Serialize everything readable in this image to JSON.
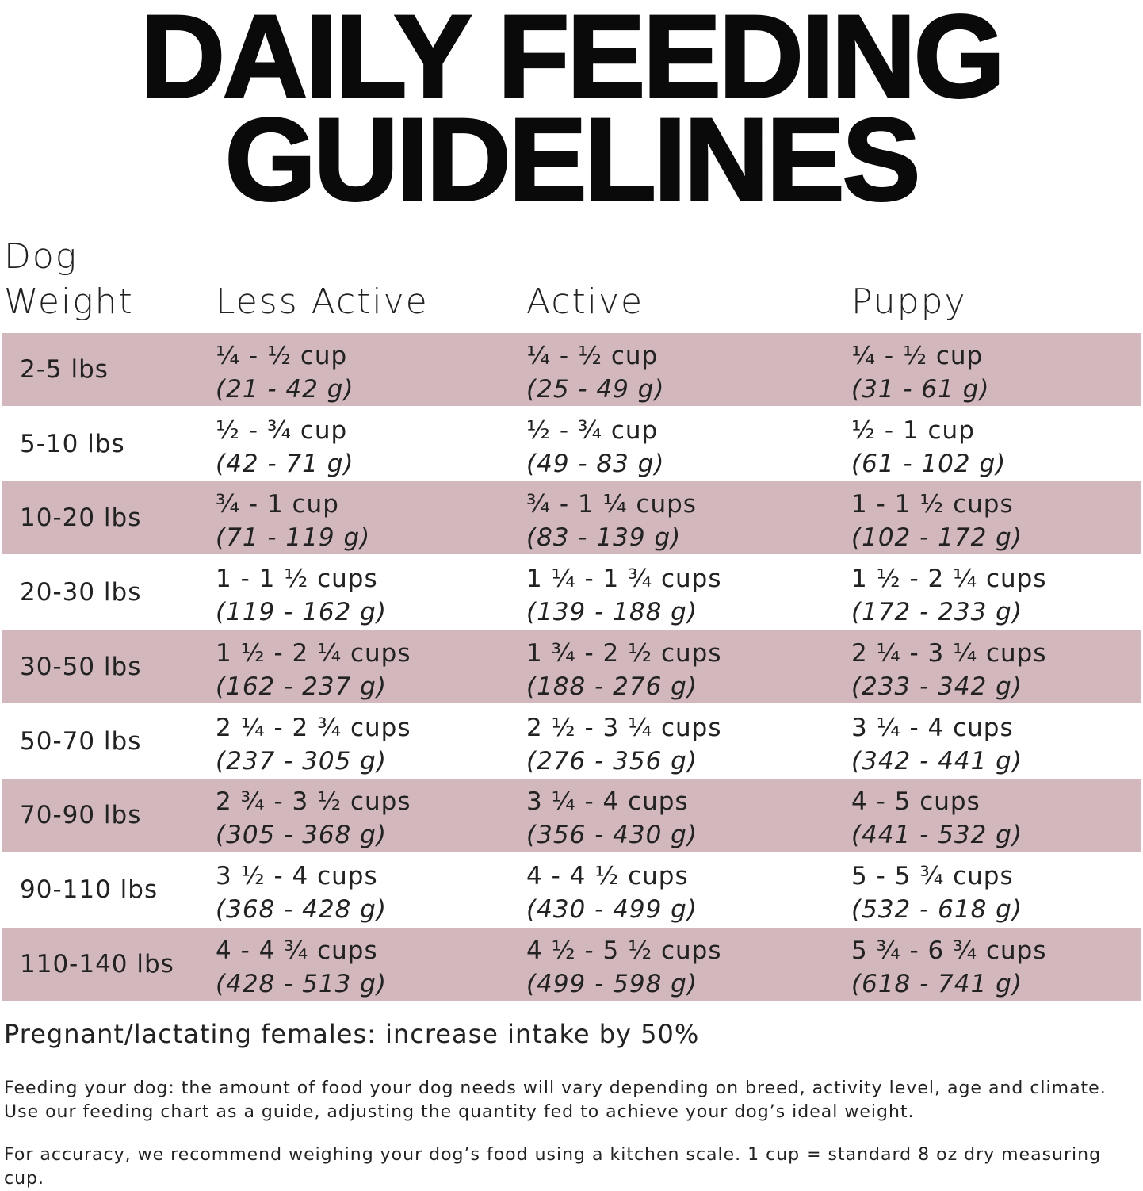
{
  "title": {
    "line1": "DAILY FEEDING",
    "line2": "GUIDELINES"
  },
  "header": {
    "weight_line1": "Dog",
    "weight_line2": "Weight",
    "less_active": "Less Active",
    "active": "Active",
    "puppy": "Puppy"
  },
  "rows": [
    {
      "weight": "2-5 lbs",
      "less_active": {
        "cups": "¼ - ½ cup",
        "grams": "(21 - 42 g)"
      },
      "active": {
        "cups": "¼ - ½ cup",
        "grams": "(25 - 49 g)"
      },
      "puppy": {
        "cups": "¼ - ½ cup",
        "grams": "(31 - 61 g)"
      }
    },
    {
      "weight": "5-10 lbs",
      "less_active": {
        "cups": "½ - ¾ cup",
        "grams": "(42 - 71 g)"
      },
      "active": {
        "cups": "½ - ¾ cup",
        "grams": "(49 - 83 g)"
      },
      "puppy": {
        "cups": "½ - 1 cup",
        "grams": "(61 - 102 g)"
      }
    },
    {
      "weight": "10-20 lbs",
      "less_active": {
        "cups": "¾ - 1 cup",
        "grams": "(71 - 119 g)"
      },
      "active": {
        "cups": "¾ - 1 ¼ cups",
        "grams": "(83 - 139 g)"
      },
      "puppy": {
        "cups": "1 - 1 ½ cups",
        "grams": "(102 - 172 g)"
      }
    },
    {
      "weight": "20-30 lbs",
      "less_active": {
        "cups": "1 - 1 ½ cups",
        "grams": "(119 - 162 g)"
      },
      "active": {
        "cups": "1 ¼ - 1 ¾ cups",
        "grams": "(139 - 188 g)"
      },
      "puppy": {
        "cups": "1 ½ - 2 ¼ cups",
        "grams": "(172 - 233 g)"
      }
    },
    {
      "weight": "30-50 lbs",
      "less_active": {
        "cups": "1 ½ - 2 ¼ cups",
        "grams": "(162 - 237 g)"
      },
      "active": {
        "cups": "1 ¾ - 2 ½ cups",
        "grams": "(188 - 276 g)"
      },
      "puppy": {
        "cups": "2 ¼ - 3 ¼ cups",
        "grams": "(233 - 342 g)"
      }
    },
    {
      "weight": "50-70 lbs",
      "less_active": {
        "cups": "2 ¼ - 2 ¾ cups",
        "grams": "(237 - 305 g)"
      },
      "active": {
        "cups": "2 ½ - 3 ¼ cups",
        "grams": "(276 - 356 g)"
      },
      "puppy": {
        "cups": "3 ¼ - 4 cups",
        "grams": "(342 - 441 g)"
      }
    },
    {
      "weight": "70-90 lbs",
      "less_active": {
        "cups": "2 ¾ - 3 ½ cups",
        "grams": "(305 - 368 g)"
      },
      "active": {
        "cups": "3 ¼ - 4 cups",
        "grams": "(356 - 430 g)"
      },
      "puppy": {
        "cups": "4 - 5 cups",
        "grams": "(441 - 532 g)"
      }
    },
    {
      "weight": "90-110 lbs",
      "less_active": {
        "cups": "3 ½ - 4 cups",
        "grams": "(368 - 428 g)"
      },
      "active": {
        "cups": "4 - 4 ½ cups",
        "grams": "(430 - 499 g)"
      },
      "puppy": {
        "cups": "5 - 5 ¾ cups",
        "grams": "(532 - 618 g)"
      }
    },
    {
      "weight": "110-140 lbs",
      "less_active": {
        "cups": "4 - 4 ¾ cups",
        "grams": "(428 - 513 g)"
      },
      "active": {
        "cups": "4 ½ - 5 ½ cups",
        "grams": "(499 - 598 g)"
      },
      "puppy": {
        "cups": "5 ¾ - 6 ¾ cups",
        "grams": "(618 - 741 g)"
      }
    }
  ],
  "notes": {
    "pregnant": "Pregnant/lactating females: increase intake by 50%",
    "feeding": "Feeding your dog: the amount of food your dog needs will vary depending on breed, activity level, age and climate. Use our feeding chart as a guide, adjusting the quantity fed to achieve your dog’s ideal weight.",
    "accuracy": "For accuracy, we recommend weighing your dog’s food using a kitchen scale. 1 cup = standard 8 oz dry measuring cup."
  },
  "colors": {
    "row_shade": "#d2b8bd"
  }
}
